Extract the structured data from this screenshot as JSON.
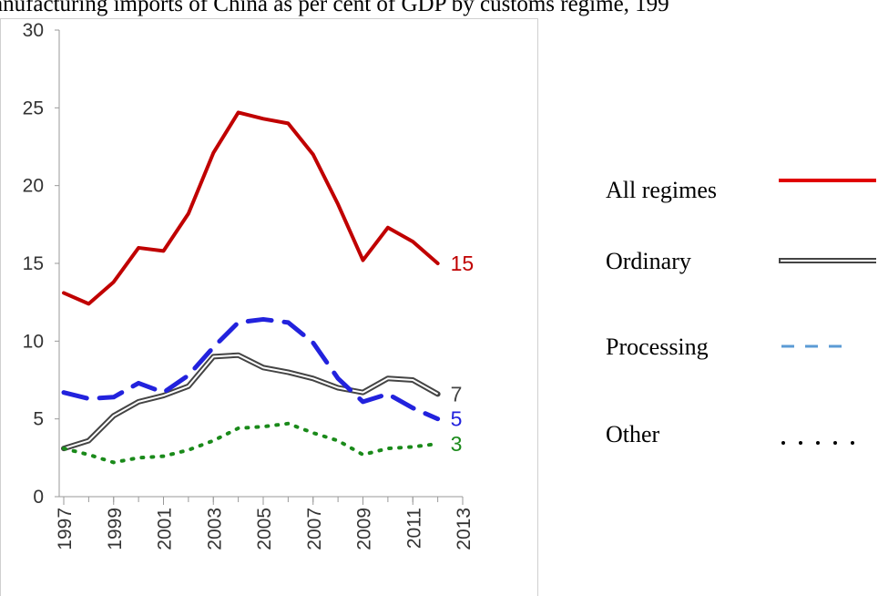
{
  "chart_data": {
    "type": "line",
    "title": "anufacturing imports of China as per cent of GDP by customs regime, 199",
    "x": [
      1997,
      1998,
      1999,
      2000,
      2001,
      2002,
      2003,
      2004,
      2005,
      2006,
      2007,
      2008,
      2009,
      2010,
      2011,
      2012
    ],
    "xlim": [
      1997,
      2013
    ],
    "xticks": [
      1997,
      1999,
      2001,
      2003,
      2005,
      2007,
      2009,
      2011,
      2013
    ],
    "ylim": [
      0,
      30
    ],
    "yticks": [
      0,
      5,
      10,
      15,
      20,
      25,
      30
    ],
    "grid": false,
    "series": [
      {
        "name": "All regimes",
        "color": "#c00000",
        "legend_color": "#e00000",
        "style": "solid",
        "end_label": "15",
        "values": [
          13.1,
          12.4,
          13.8,
          16.0,
          15.8,
          18.2,
          22.1,
          24.7,
          24.3,
          24.0,
          22.0,
          18.8,
          15.2,
          17.3,
          16.4,
          15.0
        ]
      },
      {
        "name": "Ordinary",
        "color": "#444444",
        "legend_color": "#444444",
        "style": "double",
        "end_label": "7",
        "values": [
          3.1,
          3.6,
          5.2,
          6.1,
          6.5,
          7.1,
          9.0,
          9.1,
          8.3,
          8.0,
          7.6,
          7.0,
          6.7,
          7.6,
          7.5,
          6.6
        ]
      },
      {
        "name": "Processing",
        "color": "#2222dd",
        "legend_color": "#5b9bd5",
        "style": "dashed",
        "end_label": "5",
        "values": [
          6.7,
          6.3,
          6.4,
          7.3,
          6.7,
          7.8,
          9.6,
          11.2,
          11.4,
          11.2,
          9.9,
          7.6,
          6.1,
          6.6,
          5.7,
          5.0
        ]
      },
      {
        "name": "Other",
        "color": "#1a8a1a",
        "legend_color": "#000000",
        "style": "dotted",
        "end_label": "3",
        "values": [
          3.1,
          2.7,
          2.2,
          2.5,
          2.6,
          3.0,
          3.6,
          4.4,
          4.5,
          4.7,
          4.1,
          3.6,
          2.7,
          3.1,
          3.2,
          3.4
        ]
      }
    ]
  }
}
